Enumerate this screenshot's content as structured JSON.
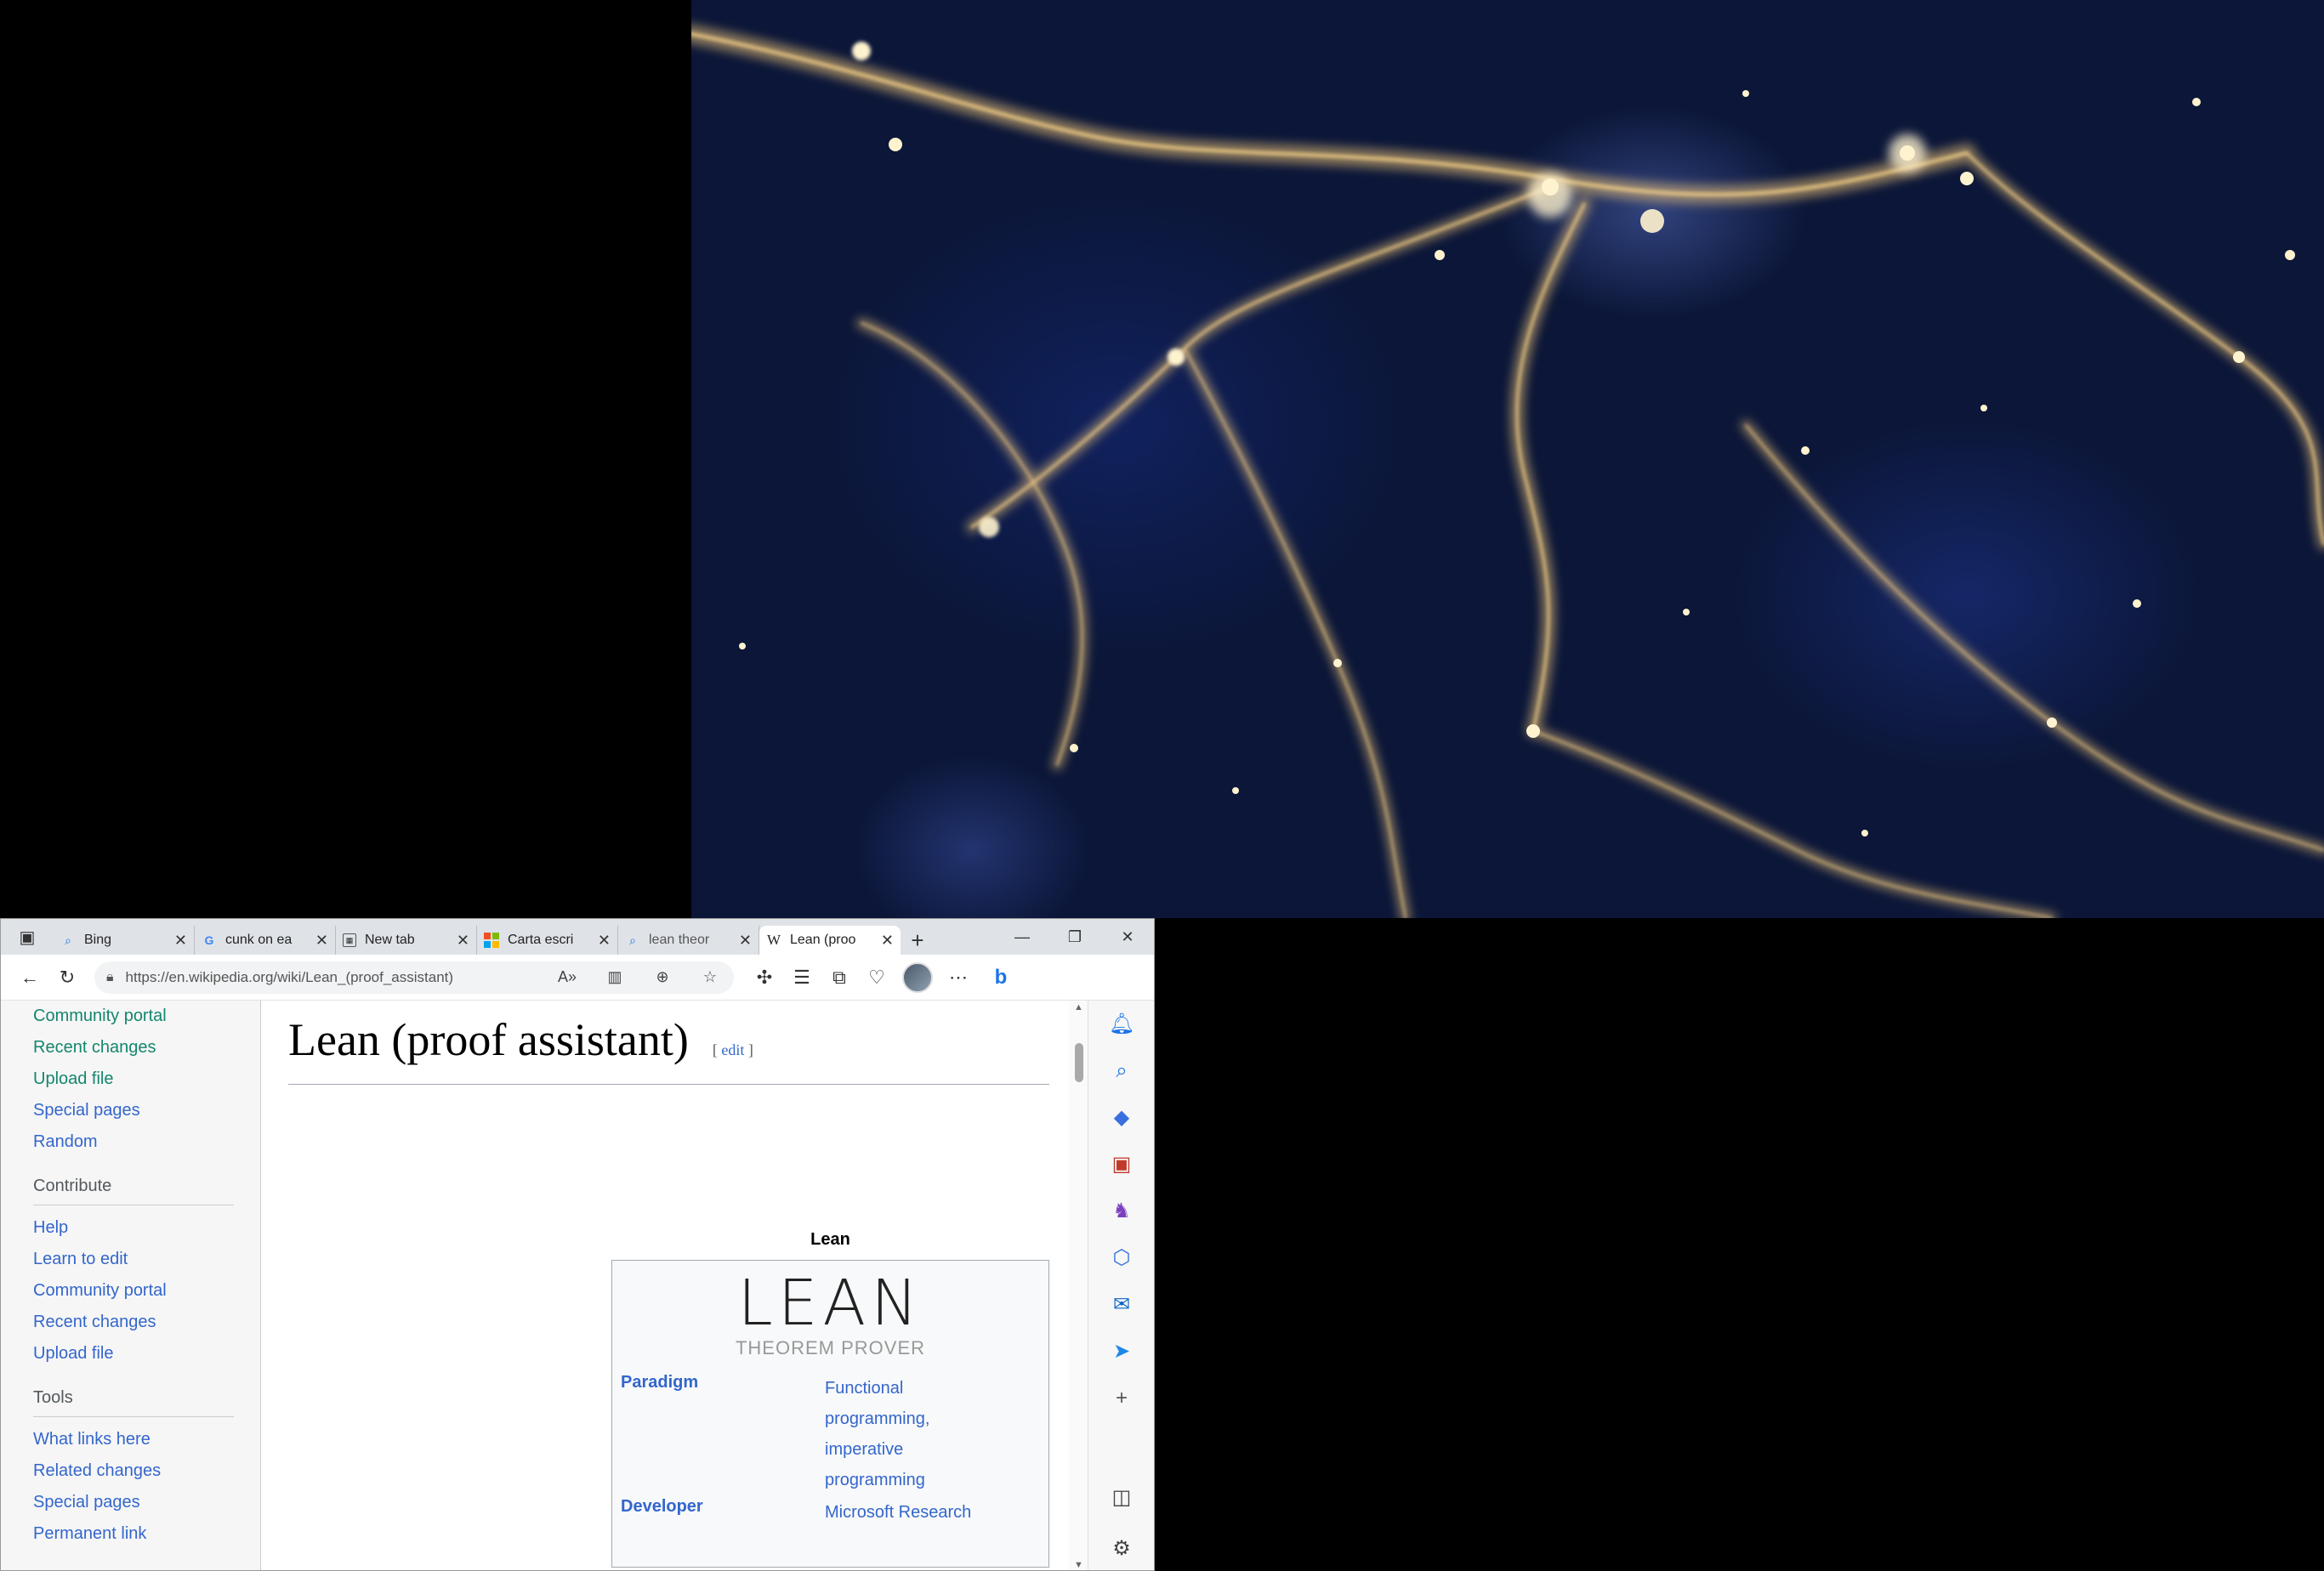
{
  "tabs": [
    {
      "title": "Bing",
      "icon": "search-icon"
    },
    {
      "title": "cunk on ea",
      "icon": "google-icon"
    },
    {
      "title": "New tab",
      "icon": "newtab-icon"
    },
    {
      "title": "Carta escri",
      "icon": "microsoft-icon"
    },
    {
      "title": "lean theor",
      "icon": "search-icon"
    },
    {
      "title": "Lean (proo",
      "icon": "wikipedia-icon",
      "active": true
    }
  ],
  "address": {
    "url": "https://en.wikipedia.org/wiki/Lean_(proof_assistant)"
  },
  "page": {
    "title": "Lean (proof assistant)",
    "edit_label": "edit"
  },
  "sidebar": {
    "top_items": [
      "Community portal",
      "Recent changes",
      "Upload file",
      "Special pages",
      "Random"
    ],
    "contribute_heading": "Contribute",
    "contribute_items": [
      "Help",
      "Learn to edit",
      "Community portal",
      "Recent changes",
      "Upload file"
    ],
    "tools_heading": "Tools",
    "tools_items": [
      "What links here",
      "Related changes",
      "Special pages",
      "Permanent link"
    ]
  },
  "infobox": {
    "title": "Lean",
    "logo_mark": "LEAN",
    "logo_sub": "THEOREM PROVER",
    "rows": [
      {
        "key": "Paradigm",
        "values": [
          "Functional",
          "programming,",
          "imperative",
          "programming"
        ]
      },
      {
        "key": "Developer",
        "values": [
          "Microsoft Research"
        ]
      }
    ]
  },
  "colors": {
    "link": "#3366cc",
    "accent": "#0b1638"
  }
}
